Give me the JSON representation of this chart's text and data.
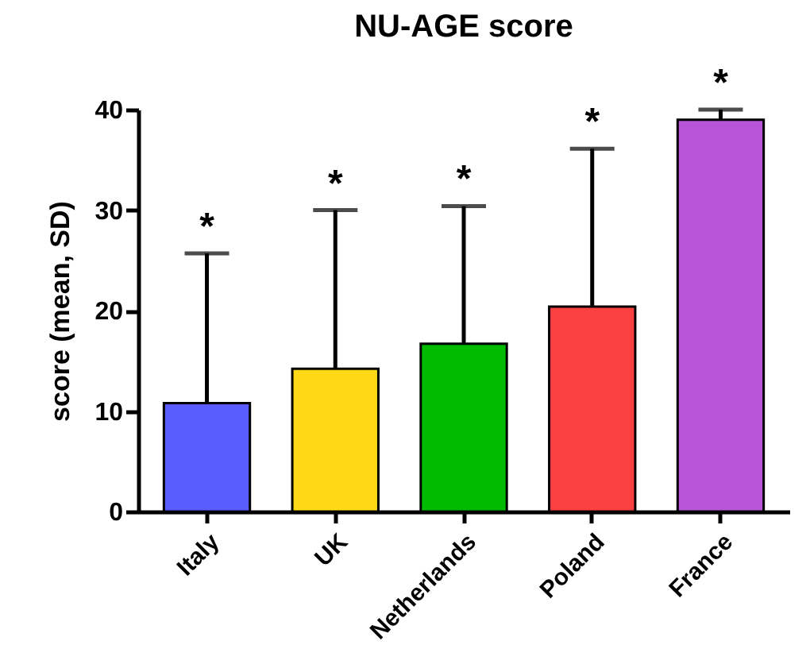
{
  "chart_data": {
    "type": "bar",
    "title": "NU-AGE score",
    "ylabel": "score (mean, SD)",
    "categories": [
      "Italy",
      "UK",
      "Netherlands",
      "Poland",
      "France"
    ],
    "values": [
      10.8,
      14.2,
      16.7,
      20.4,
      39.0
    ],
    "colors": [
      "#5a5cff",
      "#ffd816",
      "#00bb00",
      "#fa4040",
      "#b755d6"
    ],
    "errors": [
      [
        10.8,
        25.7
      ],
      [
        14.2,
        30.0
      ],
      [
        16.7,
        30.4
      ],
      [
        20.4,
        36.1
      ],
      [
        39.0,
        40.0
      ]
    ],
    "ylim": [
      0,
      40
    ],
    "yticks": [
      0,
      10,
      20,
      30,
      40
    ],
    "annotations": [
      "*",
      "*",
      "*",
      "*",
      "*"
    ]
  }
}
